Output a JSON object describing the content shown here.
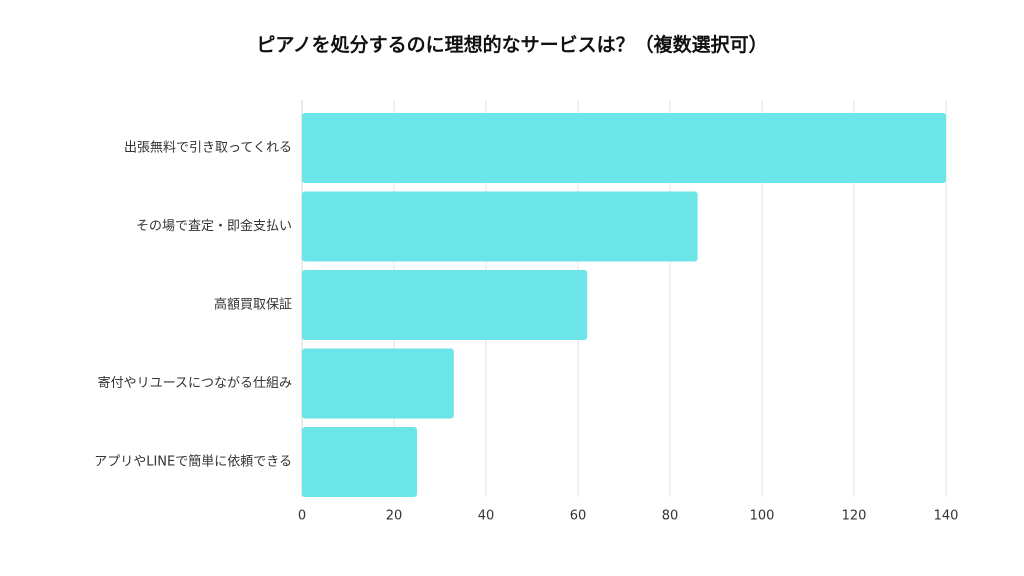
{
  "chart_data": {
    "type": "bar",
    "orientation": "horizontal",
    "title": "ピアノを処分するのに理想的なサービスは？（複数選択可）",
    "categories": [
      "出張無料で引き取ってくれる",
      "その場で査定・即金支払い",
      "高額買取保証",
      "寄付やリユースにつながる仕組み",
      "アプリやLINEで簡単に依頼できる"
    ],
    "values": [
      140,
      86,
      62,
      33,
      25
    ],
    "xlim": [
      0,
      140
    ],
    "xticks": [
      0,
      20,
      40,
      60,
      80,
      100,
      120,
      140
    ],
    "xlabel": "",
    "ylabel": "",
    "grid": "vertical",
    "bar_color": "#6ce5e8"
  }
}
